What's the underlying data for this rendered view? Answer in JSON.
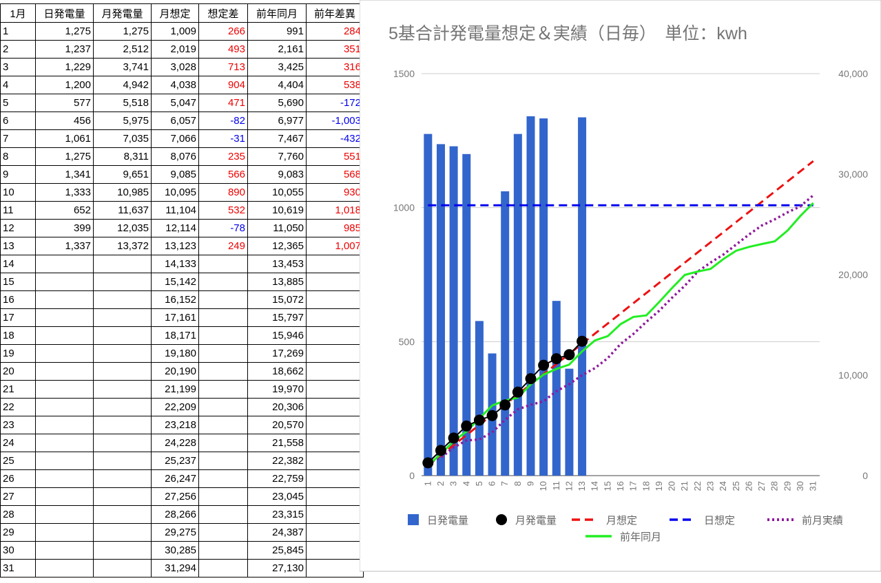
{
  "table": {
    "header": [
      "1月",
      "日発電量",
      "月発電量",
      "月想定",
      "想定差",
      "前年同月",
      "前年差異"
    ],
    "rows": [
      [
        "1",
        "1,275",
        "1,275",
        "1,009",
        "266",
        "991",
        "284"
      ],
      [
        "2",
        "1,237",
        "2,512",
        "2,019",
        "493",
        "2,161",
        "351"
      ],
      [
        "3",
        "1,229",
        "3,741",
        "3,028",
        "713",
        "3,425",
        "316"
      ],
      [
        "4",
        "1,200",
        "4,942",
        "4,038",
        "904",
        "4,404",
        "538"
      ],
      [
        "5",
        "577",
        "5,518",
        "5,047",
        "471",
        "5,690",
        "-172"
      ],
      [
        "6",
        "456",
        "5,975",
        "6,057",
        "-82",
        "6,977",
        "-1,003"
      ],
      [
        "7",
        "1,061",
        "7,035",
        "7,066",
        "-31",
        "7,467",
        "-432"
      ],
      [
        "8",
        "1,275",
        "8,311",
        "8,076",
        "235",
        "7,760",
        "551"
      ],
      [
        "9",
        "1,341",
        "9,651",
        "9,085",
        "566",
        "9,083",
        "568"
      ],
      [
        "10",
        "1,333",
        "10,985",
        "10,095",
        "890",
        "10,055",
        "930"
      ],
      [
        "11",
        "652",
        "11,637",
        "11,104",
        "532",
        "10,619",
        "1,018"
      ],
      [
        "12",
        "399",
        "12,035",
        "12,114",
        "-78",
        "11,050",
        "985"
      ],
      [
        "13",
        "1,337",
        "13,372",
        "13,123",
        "249",
        "12,365",
        "1,007"
      ],
      [
        "14",
        null,
        null,
        "14,133",
        null,
        "13,453",
        null
      ],
      [
        "15",
        null,
        null,
        "15,142",
        null,
        "13,885",
        null
      ],
      [
        "16",
        null,
        null,
        "16,152",
        null,
        "15,072",
        null
      ],
      [
        "17",
        null,
        null,
        "17,161",
        null,
        "15,797",
        null
      ],
      [
        "18",
        null,
        null,
        "18,171",
        null,
        "15,946",
        null
      ],
      [
        "19",
        null,
        null,
        "19,180",
        null,
        "17,269",
        null
      ],
      [
        "20",
        null,
        null,
        "20,190",
        null,
        "18,662",
        null
      ],
      [
        "21",
        null,
        null,
        "21,199",
        null,
        "19,970",
        null
      ],
      [
        "22",
        null,
        null,
        "22,209",
        null,
        "20,306",
        null
      ],
      [
        "23",
        null,
        null,
        "23,218",
        null,
        "20,570",
        null
      ],
      [
        "24",
        null,
        null,
        "24,228",
        null,
        "21,558",
        null
      ],
      [
        "25",
        null,
        null,
        "25,237",
        null,
        "22,382",
        null
      ],
      [
        "26",
        null,
        null,
        "26,247",
        null,
        "22,759",
        null
      ],
      [
        "27",
        null,
        null,
        "27,256",
        null,
        "23,045",
        null
      ],
      [
        "28",
        null,
        null,
        "28,266",
        null,
        "23,315",
        null
      ],
      [
        "29",
        null,
        null,
        "29,275",
        null,
        "24,387",
        null
      ],
      [
        "30",
        null,
        null,
        "30,285",
        null,
        "25,845",
        null
      ],
      [
        "31",
        null,
        null,
        "31,294",
        null,
        "27,130",
        null
      ]
    ]
  },
  "chart_data": {
    "type": "combo",
    "title": "5基合計発電量想定＆実績（日毎）　単位：kwh",
    "categories": [
      "1",
      "2",
      "3",
      "4",
      "5",
      "6",
      "7",
      "8",
      "9",
      "10",
      "11",
      "12",
      "13",
      "14",
      "15",
      "16",
      "17",
      "18",
      "19",
      "20",
      "21",
      "22",
      "23",
      "24",
      "25",
      "26",
      "27",
      "28",
      "29",
      "30",
      "31"
    ],
    "ylim": [
      0,
      1500
    ],
    "yticks": [
      0,
      500,
      1000,
      1500
    ],
    "y2lim": [
      0,
      40000
    ],
    "y2ticks": [
      0,
      {
        "value": 10000,
        "label": "10,000"
      },
      {
        "value": 20000,
        "label": "20,000"
      },
      {
        "value": 30000,
        "label": "30,000"
      },
      {
        "value": 40000,
        "label": "40,000"
      }
    ],
    "grid": true,
    "series": [
      {
        "name": "日発電量",
        "type": "bar",
        "color": "#3366cc",
        "values": [
          1275,
          1237,
          1229,
          1200,
          577,
          456,
          1061,
          1275,
          1341,
          1333,
          652,
          399,
          1337,
          null,
          null,
          null,
          null,
          null,
          null,
          null,
          null,
          null,
          null,
          null,
          null,
          null,
          null,
          null,
          null,
          null,
          null
        ]
      },
      {
        "name": "月発電量",
        "type": "line",
        "marker": "circle",
        "axis": "y2",
        "color": "#000000",
        "values": [
          1275,
          2512,
          3741,
          4942,
          5518,
          5975,
          7035,
          8311,
          9651,
          10985,
          11637,
          12035,
          13372,
          null,
          null,
          null,
          null,
          null,
          null,
          null,
          null,
          null,
          null,
          null,
          null,
          null,
          null,
          null,
          null,
          null,
          null
        ]
      },
      {
        "name": "月想定",
        "type": "line",
        "dash": "dashed",
        "axis": "y2",
        "color": "#ee1111",
        "values": [
          1009,
          2019,
          3028,
          4038,
          5047,
          6057,
          7066,
          8076,
          9085,
          10095,
          11104,
          12114,
          13123,
          14133,
          15142,
          16152,
          17161,
          18171,
          19180,
          20190,
          21199,
          22209,
          23218,
          24228,
          25237,
          26247,
          27256,
          28266,
          29275,
          30285,
          31294
        ]
      },
      {
        "name": "日想定",
        "type": "line",
        "dash": "dashed",
        "color": "#0000ee",
        "values": [
          1009,
          1009,
          1009,
          1009,
          1009,
          1009,
          1009,
          1009,
          1009,
          1009,
          1009,
          1009,
          1009,
          1009,
          1009,
          1009,
          1009,
          1009,
          1009,
          1009,
          1009,
          1009,
          1009,
          1009,
          1009,
          1009,
          1009,
          1009,
          1009,
          1009,
          1009
        ]
      },
      {
        "name": "前月実績",
        "type": "line",
        "dash": "dotted",
        "axis": "y2",
        "color": "#8e1a9c",
        "values": [
          1300,
          1780,
          2800,
          3500,
          3600,
          4300,
          5550,
          6600,
          7050,
          7400,
          8400,
          9100,
          10000,
          10700,
          11700,
          13100,
          14100,
          15300,
          16400,
          17700,
          18900,
          20300,
          21200,
          22000,
          23000,
          24000,
          24900,
          25500,
          26200,
          26800,
          27900
        ]
      },
      {
        "name": "前年同月",
        "type": "line",
        "axis": "y2",
        "color": "#22ee22",
        "values": [
          991,
          2161,
          3425,
          4404,
          5690,
          6977,
          7467,
          7760,
          9083,
          10055,
          10619,
          11050,
          12365,
          13453,
          13885,
          15072,
          15797,
          15946,
          17269,
          18662,
          19970,
          20306,
          20570,
          21558,
          22382,
          22759,
          23045,
          23315,
          24387,
          25845,
          27130
        ]
      }
    ]
  }
}
